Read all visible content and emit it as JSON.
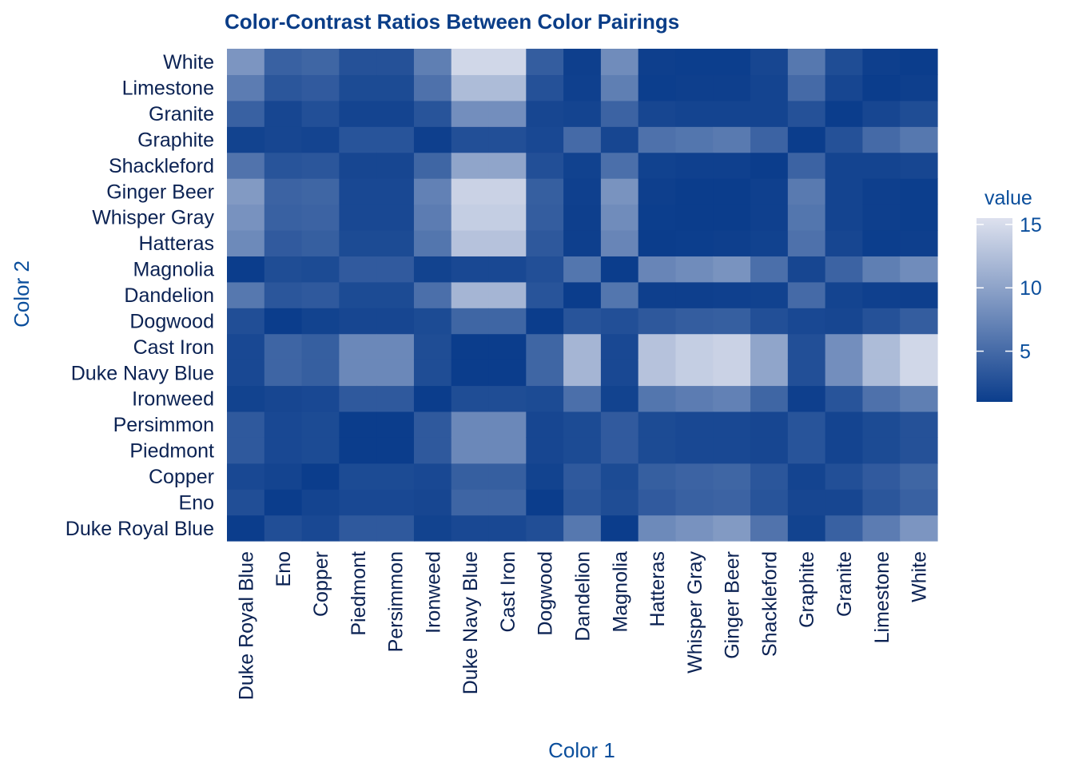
{
  "chart_data": {
    "type": "heatmap",
    "title": "Color-Contrast Ratios Between Color Pairings",
    "xlabel": "Color 1",
    "ylabel": "Color 2",
    "x_categories": [
      "Duke Royal Blue",
      "Eno",
      "Copper",
      "Piedmont",
      "Persimmon",
      "Ironweed",
      "Duke Navy Blue",
      "Cast Iron",
      "Dogwood",
      "Dandelion",
      "Magnolia",
      "Hatteras",
      "Whisper Gray",
      "Ginger Beer",
      "Shackleford",
      "Graphite",
      "Granite",
      "Limestone",
      "White"
    ],
    "y_categories": [
      "Duke Royal Blue",
      "Eno",
      "Copper",
      "Piedmont",
      "Persimmon",
      "Ironweed",
      "Duke Navy Blue",
      "Cast Iron",
      "Dogwood",
      "Dandelion",
      "Magnolia",
      "Hatteras",
      "Whisper Gray",
      "Ginger Beer",
      "Shackleford",
      "Graphite",
      "Granite",
      "Limestone",
      "White"
    ],
    "values": [
      [
        1.0,
        2.5,
        2.0,
        3.5,
        3.5,
        1.5,
        2.0,
        2.0,
        2.5,
        6.2,
        1.0,
        7.8,
        8.5,
        9.2,
        5.8,
        1.5,
        4.2,
        6.6,
        8.8
      ],
      [
        2.5,
        1.0,
        1.6,
        2.0,
        2.0,
        1.8,
        4.5,
        4.5,
        1.0,
        3.2,
        2.4,
        3.6,
        4.2,
        4.4,
        3.0,
        1.8,
        1.8,
        3.2,
        4.2
      ],
      [
        2.0,
        1.6,
        1.0,
        2.2,
        2.2,
        2.0,
        4.0,
        4.0,
        1.5,
        3.5,
        2.2,
        4.0,
        4.4,
        4.6,
        3.2,
        1.6,
        2.6,
        3.6,
        4.6
      ],
      [
        3.5,
        2.0,
        2.2,
        1.0,
        1.0,
        3.5,
        7.6,
        7.6,
        1.8,
        2.2,
        3.6,
        2.2,
        2.0,
        2.0,
        1.8,
        3.0,
        1.6,
        2.2,
        2.8
      ],
      [
        3.5,
        2.0,
        2.2,
        1.0,
        1.0,
        3.5,
        7.6,
        7.6,
        1.8,
        2.2,
        3.6,
        2.2,
        2.0,
        2.0,
        1.8,
        3.0,
        1.6,
        2.2,
        2.8
      ],
      [
        1.5,
        1.8,
        2.0,
        3.5,
        3.5,
        1.0,
        2.4,
        2.4,
        2.2,
        5.4,
        1.5,
        6.0,
        6.6,
        7.0,
        4.6,
        1.2,
        3.0,
        5.6,
        6.8
      ],
      [
        2.0,
        4.5,
        4.0,
        7.6,
        7.6,
        2.4,
        1.0,
        1.0,
        4.6,
        11.6,
        2.0,
        12.8,
        13.8,
        14.2,
        10.2,
        2.6,
        8.2,
        12.2,
        14.6
      ],
      [
        2.0,
        4.5,
        4.0,
        7.6,
        7.6,
        2.4,
        1.0,
        1.0,
        4.6,
        11.6,
        2.0,
        12.8,
        13.8,
        14.2,
        10.2,
        2.6,
        8.2,
        12.2,
        14.6
      ],
      [
        2.5,
        1.0,
        1.5,
        1.8,
        1.8,
        2.2,
        4.6,
        4.6,
        1.0,
        3.0,
        2.6,
        3.4,
        3.8,
        4.0,
        2.6,
        2.0,
        1.8,
        2.8,
        3.8
      ],
      [
        6.2,
        3.2,
        3.5,
        2.2,
        2.2,
        5.4,
        11.6,
        11.6,
        3.0,
        1.0,
        6.0,
        1.2,
        1.2,
        1.3,
        1.4,
        5.0,
        1.6,
        1.3,
        1.2
      ],
      [
        1.0,
        2.4,
        2.2,
        3.6,
        3.6,
        1.5,
        2.0,
        2.0,
        2.6,
        6.0,
        1.0,
        7.4,
        8.0,
        8.6,
        5.4,
        1.8,
        4.4,
        6.8,
        8.0
      ],
      [
        7.8,
        3.6,
        4.0,
        2.2,
        2.2,
        6.0,
        12.8,
        12.8,
        3.4,
        1.2,
        7.4,
        1.0,
        1.1,
        1.2,
        1.4,
        5.6,
        1.8,
        1.1,
        1.2
      ],
      [
        8.5,
        4.2,
        4.4,
        2.0,
        2.0,
        6.6,
        13.8,
        13.8,
        3.8,
        1.2,
        8.0,
        1.1,
        1.0,
        1.0,
        1.3,
        6.0,
        1.6,
        1.2,
        1.1
      ],
      [
        9.2,
        4.4,
        4.6,
        2.0,
        2.0,
        7.0,
        14.2,
        14.2,
        4.0,
        1.3,
        8.6,
        1.2,
        1.0,
        1.0,
        1.3,
        6.4,
        1.6,
        1.2,
        1.1
      ],
      [
        5.8,
        3.0,
        3.2,
        1.8,
        1.8,
        4.6,
        10.2,
        10.2,
        2.6,
        1.4,
        5.4,
        1.4,
        1.3,
        1.3,
        1.0,
        4.4,
        1.6,
        1.6,
        1.8
      ],
      [
        1.5,
        1.8,
        1.6,
        3.0,
        3.0,
        1.2,
        2.6,
        2.6,
        2.0,
        5.0,
        1.8,
        5.6,
        6.0,
        6.4,
        4.4,
        1.0,
        2.8,
        5.0,
        6.2
      ],
      [
        4.2,
        1.8,
        2.6,
        1.6,
        1.6,
        3.0,
        8.2,
        8.2,
        1.8,
        1.6,
        4.4,
        1.8,
        1.6,
        1.6,
        1.6,
        2.8,
        1.0,
        1.8,
        2.4
      ],
      [
        6.6,
        3.2,
        3.6,
        2.2,
        2.2,
        5.6,
        12.2,
        12.2,
        2.8,
        1.3,
        6.8,
        1.1,
        1.2,
        1.2,
        1.6,
        5.0,
        1.8,
        1.0,
        1.2
      ],
      [
        8.8,
        4.2,
        4.6,
        2.8,
        2.8,
        6.8,
        14.6,
        14.6,
        3.8,
        1.2,
        8.0,
        1.2,
        1.1,
        1.1,
        1.8,
        6.2,
        2.4,
        1.2,
        1.0
      ]
    ],
    "value_range": [
      1,
      15.5
    ],
    "legend": {
      "title": "value",
      "ticks": [
        5,
        10,
        15
      ],
      "position": "right",
      "low_color": "#0b3d8c",
      "high_color": "#dde1ee"
    },
    "grid": false
  }
}
